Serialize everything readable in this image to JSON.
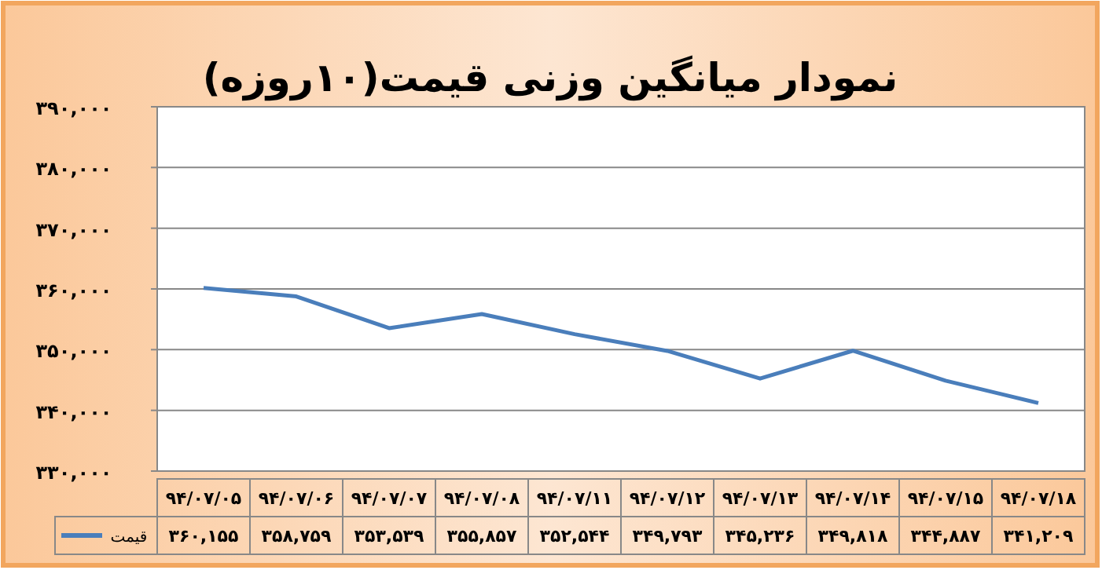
{
  "chart_data": {
    "type": "line",
    "title": "نمودار میانگین وزنی قیمت(۱۰روزه)",
    "categories": [
      "۹۴/۰۷/۰۵",
      "۹۴/۰۷/۰۶",
      "۹۴/۰۷/۰۷",
      "۹۴/۰۷/۰۸",
      "۹۴/۰۷/۱۱",
      "۹۴/۰۷/۱۲",
      "۹۴/۰۷/۱۳",
      "۹۴/۰۷/۱۴",
      "۹۴/۰۷/۱۵",
      "۹۴/۰۷/۱۸"
    ],
    "series": [
      {
        "name": "قیمت",
        "color": "#4a7ebb",
        "values": [
          360155,
          358759,
          353539,
          355857,
          352544,
          349793,
          345236,
          349818,
          344887,
          341209
        ],
        "value_labels": [
          "۳۶۰,۱۵۵",
          "۳۵۸,۷۵۹",
          "۳۵۳,۵۳۹",
          "۳۵۵,۸۵۷",
          "۳۵۲,۵۴۴",
          "۳۴۹,۷۹۳",
          "۳۴۵,۲۳۶",
          "۳۴۹,۸۱۸",
          "۳۴۴,۸۸۷",
          "۳۴۱,۲۰۹"
        ]
      }
    ],
    "ylim": [
      330000,
      390000
    ],
    "yticks": [
      {
        "value": 330000,
        "label": "۳۳۰,۰۰۰"
      },
      {
        "value": 340000,
        "label": "۳۴۰,۰۰۰"
      },
      {
        "value": 350000,
        "label": "۳۵۰,۰۰۰"
      },
      {
        "value": 360000,
        "label": "۳۶۰,۰۰۰"
      },
      {
        "value": 370000,
        "label": "۳۷۰,۰۰۰"
      },
      {
        "value": 380000,
        "label": "۳۸۰,۰۰۰"
      },
      {
        "value": 390000,
        "label": "۳۹۰,۰۰۰"
      }
    ],
    "grid": "y",
    "legend": "bottom left",
    "marker": "none",
    "line_style": "solid"
  }
}
